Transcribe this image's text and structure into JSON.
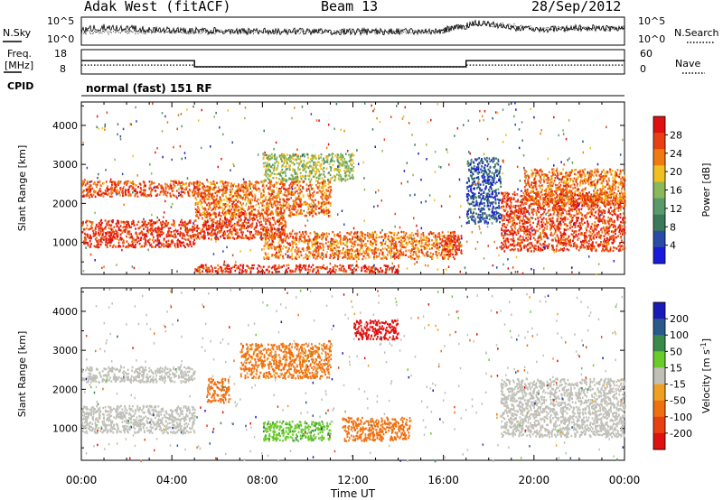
{
  "header": {
    "radar": "Adak West (fitACF)",
    "beam": "Beam 13",
    "date": "28/Sep/2012"
  },
  "status_panels": {
    "nsky_label": "N.Sky",
    "nsearch_label": "N.Search",
    "freq_label": "Freq.",
    "freq_unit": "[MHz]",
    "nave_label": "Nave",
    "cpid_label": "CPID",
    "cpid_value": "normal (fast) 151 RF",
    "noise_ticks": [
      "10^5",
      "10^0"
    ],
    "freq_ticks": [
      "18",
      "8"
    ],
    "nave_ticks": [
      "60",
      "0"
    ]
  },
  "colors": {
    "power_scale": [
      "#1a1adc",
      "#2a4aa8",
      "#3a7a5a",
      "#5a9a6a",
      "#8ab85a",
      "#f0c020",
      "#f07a10",
      "#e84010",
      "#e01010"
    ],
    "velocity_scale": [
      "#1a1ab8",
      "#2a5a8a",
      "#3a8a4a",
      "#6acc2a",
      "#c0c0b8",
      "#f0a020",
      "#f07010",
      "#e84010",
      "#e01010"
    ]
  },
  "chart_data": [
    {
      "type": "line",
      "title": "N.Sky / N.Search",
      "x_unit": "hours UT",
      "y_scale": "log",
      "ylim": [
        1,
        100000
      ],
      "series": [
        {
          "name": "N.Sky",
          "x": [
            0,
            1,
            2,
            3,
            5,
            8,
            12,
            16,
            17,
            17.5,
            18,
            19,
            20,
            22,
            24
          ],
          "y": [
            300,
            1500,
            1000,
            600,
            400,
            300,
            250,
            250,
            2500,
            10000,
            5000,
            1500,
            500,
            1200,
            800
          ]
        },
        {
          "name": "N.Search",
          "x": [
            0,
            4,
            8,
            12,
            16,
            17,
            18,
            20,
            24
          ],
          "y": [
            200,
            250,
            200,
            200,
            250,
            3000,
            5000,
            800,
            1000
          ]
        }
      ]
    },
    {
      "type": "line",
      "title": "Freq. / Nave",
      "x_unit": "hours UT",
      "series": [
        {
          "name": "Freq.",
          "y_unit": "MHz",
          "ylim": [
            8,
            18
          ],
          "x": [
            0,
            5,
            5,
            17,
            17,
            24
          ],
          "y": [
            13.5,
            13.5,
            11,
            11,
            13.5,
            13.5
          ]
        },
        {
          "name": "Nave",
          "ylim": [
            0,
            60
          ],
          "x": [
            0,
            5,
            5,
            17,
            17,
            24
          ],
          "y": [
            22,
            22,
            17,
            17,
            22,
            22
          ]
        }
      ]
    },
    {
      "type": "heatmap",
      "title": "Power [dB]",
      "xlabel": "Time UT",
      "ylabel": "Slant Range [km]",
      "x_unit": "hours UT",
      "xlim": [
        0,
        24
      ],
      "ylim": [
        180,
        4600
      ],
      "x_ticks": [
        "00:00",
        "04:00",
        "08:00",
        "12:00",
        "16:00",
        "20:00",
        "00:00"
      ],
      "y_ticks": [
        1000,
        2000,
        3000,
        4000
      ],
      "colorbar": {
        "label": "Power [dB]",
        "ticks": [
          4,
          8,
          12,
          16,
          20,
          24,
          28
        ],
        "range": [
          0,
          32
        ]
      },
      "features": [
        {
          "x": [
            0,
            5
          ],
          "y": [
            900,
            1600
          ],
          "value": 28
        },
        {
          "x": [
            0,
            5
          ],
          "y": [
            2200,
            2600
          ],
          "value": 26
        },
        {
          "x": [
            5,
            9
          ],
          "y": [
            1100,
            1800
          ],
          "value": 27
        },
        {
          "x": [
            5,
            11
          ],
          "y": [
            1700,
            2600
          ],
          "value": 24
        },
        {
          "x": [
            8,
            12
          ],
          "y": [
            2600,
            3300
          ],
          "value": 16
        },
        {
          "x": [
            8,
            16.5
          ],
          "y": [
            600,
            1300
          ],
          "value": 24
        },
        {
          "x": [
            5,
            14
          ],
          "y": [
            250,
            450
          ],
          "value": 28
        },
        {
          "x": [
            16,
            16.8
          ],
          "y": [
            700,
            1200
          ],
          "value": 28
        },
        {
          "x": [
            18.5,
            24
          ],
          "y": [
            800,
            2300
          ],
          "value": 27
        },
        {
          "x": [
            19.5,
            24
          ],
          "y": [
            2000,
            2900
          ],
          "value": 24
        },
        {
          "x": [
            17,
            18.5
          ],
          "y": [
            1500,
            3200
          ],
          "value": 6
        }
      ]
    },
    {
      "type": "heatmap",
      "title": "Velocity [m s^-1]",
      "xlabel": "Time UT",
      "ylabel": "Slant Range [km]",
      "x_unit": "hours UT",
      "xlim": [
        0,
        24
      ],
      "ylim": [
        180,
        4600
      ],
      "x_ticks": [
        "00:00",
        "04:00",
        "08:00",
        "12:00",
        "16:00",
        "20:00",
        "00:00"
      ],
      "y_ticks": [
        1000,
        2000,
        3000,
        4000
      ],
      "colorbar": {
        "label": "Velocity [m s^-1]",
        "ticks": [
          200,
          100,
          50,
          15,
          -15,
          -50,
          -100,
          -200
        ],
        "range": [
          -250,
          250
        ]
      },
      "features": [
        {
          "x": [
            0,
            5
          ],
          "y": [
            900,
            1600
          ],
          "value": 0
        },
        {
          "x": [
            0,
            5
          ],
          "y": [
            2200,
            2600
          ],
          "value": 0
        },
        {
          "x": [
            5.5,
            6.5
          ],
          "y": [
            1700,
            2300
          ],
          "value": -80
        },
        {
          "x": [
            7,
            11
          ],
          "y": [
            2300,
            3200
          ],
          "value": -60
        },
        {
          "x": [
            8,
            11
          ],
          "y": [
            700,
            1200
          ],
          "value": 40
        },
        {
          "x": [
            11.5,
            14.5
          ],
          "y": [
            700,
            1300
          ],
          "value": -80
        },
        {
          "x": [
            12,
            14
          ],
          "y": [
            3300,
            3800
          ],
          "value": -220
        },
        {
          "x": [
            18.5,
            24
          ],
          "y": [
            800,
            2300
          ],
          "value": 0
        }
      ]
    }
  ]
}
